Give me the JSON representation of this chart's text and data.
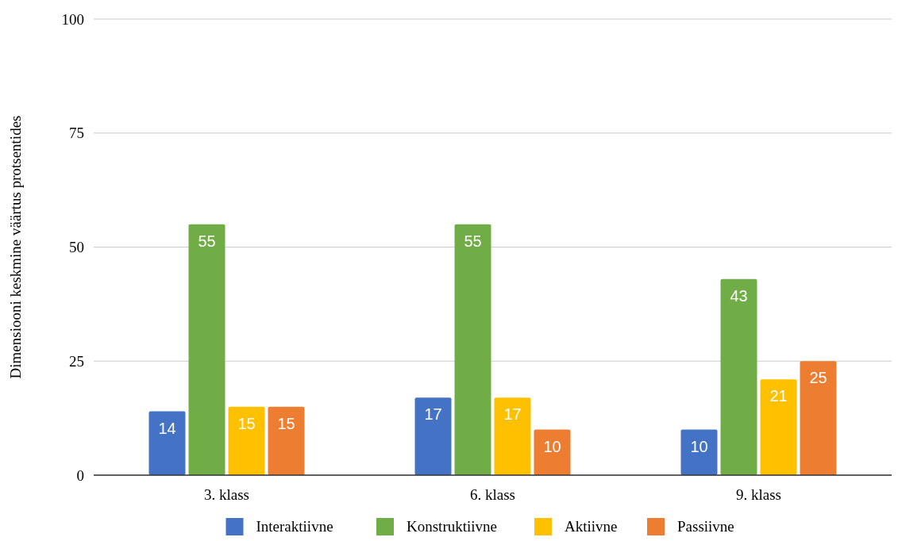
{
  "chart_data": {
    "type": "bar",
    "ylabel": "Dimensiooni keskmine väärtus protsentides",
    "categories": [
      "3. klass",
      "6. klass",
      "9. klass"
    ],
    "series": [
      {
        "name": "Interaktiivne",
        "color": "#4472c4",
        "values": [
          14,
          17,
          10
        ]
      },
      {
        "name": "Konstruktiivne",
        "color": "#70ad47",
        "values": [
          55,
          55,
          43
        ]
      },
      {
        "name": "Aktiivne",
        "color": "#ffc000",
        "values": [
          15,
          17,
          21
        ]
      },
      {
        "name": "Passiivne",
        "color": "#ed7d31",
        "values": [
          15,
          10,
          25
        ]
      }
    ],
    "ylim": [
      0,
      100
    ],
    "yticks": [
      0,
      25,
      50,
      75,
      100
    ],
    "grid": "y",
    "legend": "bottom",
    "data_labels": true
  }
}
